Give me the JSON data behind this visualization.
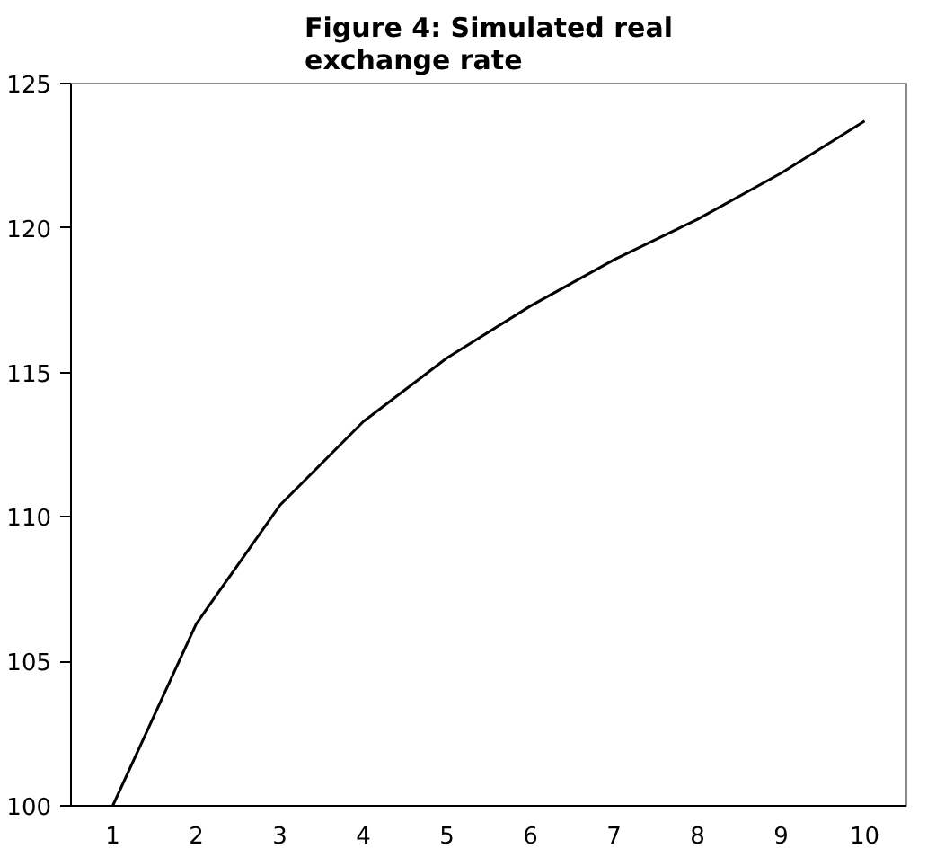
{
  "chart_data": {
    "type": "line",
    "title": "Figure 4: Simulated real\nexchange rate",
    "categories": [
      "1",
      "2",
      "3",
      "4",
      "5",
      "6",
      "7",
      "8",
      "9",
      "10"
    ],
    "series": [
      {
        "color": "#000000",
        "values": [
          100,
          106.3,
          110.4,
          113.3,
          115.5,
          117.3,
          118.9,
          120.3,
          121.9,
          123.7
        ]
      }
    ],
    "ylim": [
      100,
      125
    ],
    "yticks": [
      100,
      105,
      110,
      115,
      120,
      125
    ],
    "grid": false
  }
}
